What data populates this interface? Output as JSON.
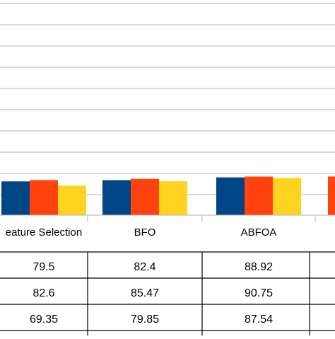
{
  "chart_data": {
    "type": "bar",
    "categories": [
      "eature Selection",
      "BFO",
      "ABFOA"
    ],
    "series": [
      {
        "values": [
          79.5,
          82.4,
          88.92
        ]
      },
      {
        "values": [
          82.6,
          85.47,
          90.75
        ]
      },
      {
        "values": [
          69.35,
          79.85,
          87.54
        ]
      }
    ],
    "partial_category": {
      "series_values": [
        null,
        90.9,
        null
      ]
    },
    "colors": [
      "#004586",
      "#ff420e",
      "#ffd320"
    ],
    "grid": true,
    "legend": "none",
    "table": {
      "rows": [
        [
          "79.5",
          "82.4",
          "88.92"
        ],
        [
          "82.6",
          "85.47",
          "90.75"
        ],
        [
          "69.35",
          "79.85",
          "87.54"
        ]
      ]
    }
  }
}
